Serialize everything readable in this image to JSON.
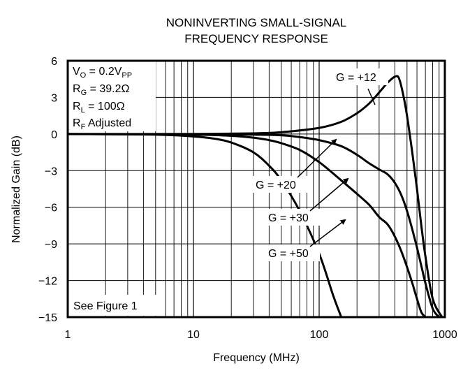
{
  "chart_data": {
    "type": "line",
    "title_line1": "NONINVERTING SMALL-SIGNAL",
    "title_line2": "FREQUENCY RESPONSE",
    "xlabel": "Frequency (MHz)",
    "ylabel": "Normalized Gain (dB)",
    "x_scale": "log",
    "xlim": [
      1,
      1000
    ],
    "ylim": [
      -15,
      6
    ],
    "x_ticks": [
      1,
      10,
      100,
      1000
    ],
    "x_tick_labels": [
      "1",
      "10",
      "100",
      "1000"
    ],
    "y_ticks": [
      6,
      3,
      0,
      -3,
      -6,
      -9,
      -12,
      -15
    ],
    "y_tick_labels": [
      "6",
      "3",
      "0",
      "−3",
      "−6",
      "−9",
      "−12",
      "−15"
    ],
    "grid": true,
    "conditions": {
      "vo": {
        "base": "V",
        "sub": "O",
        "mid": " = 0.2V",
        "sub2": "PP"
      },
      "rg": {
        "base": "R",
        "sub": "G",
        "mid": " = 39.2Ω"
      },
      "rl": {
        "base": "R",
        "sub": "L",
        "mid": " = 100Ω"
      },
      "rf": {
        "base": "R",
        "sub": "F",
        "mid": " Adjusted"
      }
    },
    "note": "See Figure 1",
    "series": [
      {
        "name": "G = +12",
        "color": "#000000",
        "x": [
          1,
          10,
          30,
          50,
          100,
          150,
          200,
          250,
          300,
          350,
          400,
          430,
          460,
          500,
          550,
          600,
          650,
          700,
          800,
          950
        ],
        "y": [
          0,
          0,
          0.05,
          0.15,
          0.5,
          1.0,
          1.7,
          2.5,
          3.4,
          4.2,
          4.7,
          4.6,
          3.5,
          1.5,
          -1.5,
          -4.5,
          -7.5,
          -10.0,
          -13.5,
          -15.0
        ]
      },
      {
        "name": "G = +20",
        "color": "#000000",
        "x": [
          1,
          10,
          30,
          50,
          70,
          100,
          150,
          200,
          250,
          300,
          350,
          400,
          450,
          500,
          550,
          600,
          650,
          700,
          800,
          900
        ],
        "y": [
          0,
          0,
          -0.05,
          -0.1,
          -0.25,
          -0.5,
          -1.0,
          -1.7,
          -2.4,
          -2.9,
          -3.3,
          -4.0,
          -5.0,
          -6.3,
          -7.8,
          -9.3,
          -10.8,
          -12.2,
          -14.3,
          -15.0
        ]
      },
      {
        "name": "G = +30",
        "color": "#000000",
        "x": [
          1,
          10,
          20,
          30,
          40,
          50,
          70,
          100,
          150,
          200,
          250,
          300,
          350,
          400,
          450,
          500,
          550,
          600,
          650,
          700
        ],
        "y": [
          0,
          -0.05,
          -0.15,
          -0.3,
          -0.5,
          -0.75,
          -1.3,
          -2.3,
          -3.8,
          -4.9,
          -5.8,
          -6.8,
          -7.4,
          -8.4,
          -9.6,
          -10.9,
          -12.2,
          -13.5,
          -14.6,
          -15.0
        ]
      },
      {
        "name": "G = +50",
        "color": "#000000",
        "x": [
          1,
          5,
          10,
          15,
          20,
          30,
          40,
          50,
          70,
          100,
          130,
          150
        ],
        "y": [
          0,
          -0.05,
          -0.2,
          -0.4,
          -0.7,
          -1.5,
          -2.6,
          -3.8,
          -6.3,
          -9.8,
          -13.3,
          -15.0
        ]
      }
    ],
    "curve_labels": [
      {
        "text": "G = +12",
        "series": 0
      },
      {
        "text": "G = +20",
        "series": 1
      },
      {
        "text": "G = +30",
        "series": 2
      },
      {
        "text": "G = +50",
        "series": 3
      }
    ]
  }
}
